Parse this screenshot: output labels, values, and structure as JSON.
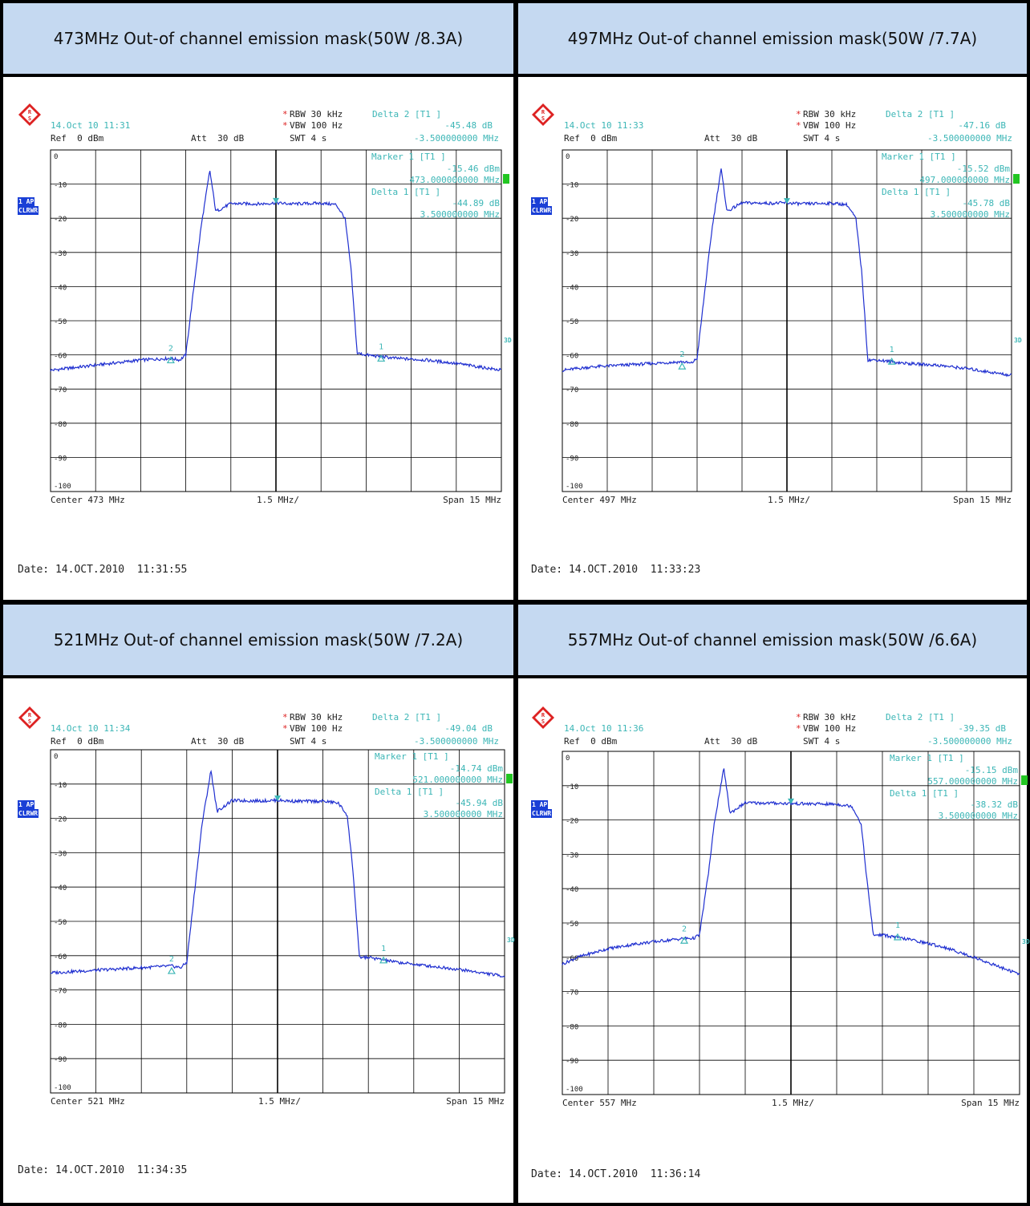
{
  "panels": [
    {
      "title": "473MHz Out-of channel emission mask(50W /8.3A)",
      "datetime_top": "14.Oct 10 11:31",
      "ref": "Ref  0 dBm",
      "att": "Att  30 dB",
      "rbw": "RBW 30 kHz",
      "vbw": "VBW 100 Hz",
      "swt": "SWT 4 s",
      "delta2_label": "Delta 2 [T1 ]",
      "delta2_value": "-45.48 dB",
      "delta2_freq": "-3.500000000 MHz",
      "marker1_label": "Marker 1 [T1 ]",
      "marker1_value": "-15.46 dBm",
      "marker1_freq": "473.000000000 MHz",
      "delta1_label": "Delta 1 [T1 ]",
      "delta1_value": "-44.89 dB",
      "delta1_freq": "3.500000000 MHz",
      "badge_ap": "1 AP",
      "badge_mode": "CLRWR",
      "center": "Center 473 MHz",
      "div": "1.5 MHz/",
      "span": "Span 15 MHz",
      "date_footer": "Date: 14.OCT.2010  11:31:55"
    },
    {
      "title": "497MHz Out-of channel emission mask(50W /7.7A)",
      "datetime_top": "14.Oct 10 11:33",
      "ref": "Ref  0 dBm",
      "att": "Att  30 dB",
      "rbw": "RBW 30 kHz",
      "vbw": "VBW 100 Hz",
      "swt": "SWT 4 s",
      "delta2_label": "Delta 2 [T1 ]",
      "delta2_value": "-47.16 dB",
      "delta2_freq": "-3.500000000 MHz",
      "marker1_label": "Marker 1 [T1 ]",
      "marker1_value": "-15.52 dBm",
      "marker1_freq": "497.000000000 MHz",
      "delta1_label": "Delta 1 [T1 ]",
      "delta1_value": "-45.78 dB",
      "delta1_freq": "3.500000000 MHz",
      "badge_ap": "1 AP",
      "badge_mode": "CLRWR",
      "center": "Center 497 MHz",
      "div": "1.5 MHz/",
      "span": "Span 15 MHz",
      "date_footer": "Date: 14.OCT.2010  11:33:23"
    },
    {
      "title": "521MHz Out-of channel emission mask(50W /7.2A)",
      "datetime_top": "14.Oct 10 11:34",
      "ref": "Ref  0 dBm",
      "att": "Att  30 dB",
      "rbw": "RBW 30 kHz",
      "vbw": "VBW 100 Hz",
      "swt": "SWT 4 s",
      "delta2_label": "Delta 2 [T1 ]",
      "delta2_value": "-49.04 dB",
      "delta2_freq": "-3.500000000 MHz",
      "marker1_label": "Marker 1 [T1 ]",
      "marker1_value": "-14.74 dBm",
      "marker1_freq": "521.000000000 MHz",
      "delta1_label": "Delta 1 [T1 ]",
      "delta1_value": "-45.94 dB",
      "delta1_freq": "3.500000000 MHz",
      "badge_ap": "1 AP",
      "badge_mode": "CLRWR",
      "center": "Center 521 MHz",
      "div": "1.5 MHz/",
      "span": "Span 15 MHz",
      "date_footer": "Date: 14.OCT.2010  11:34:35"
    },
    {
      "title": "557MHz Out-of channel emission mask(50W /6.6A)",
      "datetime_top": "14.Oct 10 11:36",
      "ref": "Ref  0 dBm",
      "att": "Att  30 dB",
      "rbw": "RBW 30 kHz",
      "vbw": "VBW 100 Hz",
      "swt": "SWT 4 s",
      "delta2_label": "Delta 2 [T1 ]",
      "delta2_value": "-39.35 dB",
      "delta2_freq": "-3.500000000 MHz",
      "marker1_label": "Marker 1 [T1 ]",
      "marker1_value": "-15.15 dBm",
      "marker1_freq": "557.000000000 MHz",
      "delta1_label": "Delta 1 [T1 ]",
      "delta1_value": "-38.32 dB",
      "delta1_freq": "3.500000000 MHz",
      "badge_ap": "1 AP",
      "badge_mode": "CLRWR",
      "center": "Center 557 MHz",
      "div": "1.5 MHz/",
      "span": "Span 15 MHz",
      "date_footer": "Date: 14.OCT.2010  11:36:14"
    }
  ],
  "colors": {
    "header_bg": "#c5d9f1",
    "trace": "#1f2fd0",
    "annot": "#3cb6b6",
    "badge": "#1a3fd6"
  },
  "chart_data": [
    {
      "type": "line",
      "title": "473MHz Out-of channel emission mask(50W /8.3A)",
      "xlabel": "MHz",
      "ylabel": "dBm",
      "xlim": [
        465.5,
        480.5
      ],
      "ylim": [
        -100,
        0
      ],
      "yticks": [
        0,
        -10,
        -20,
        -30,
        -40,
        -50,
        -60,
        -70,
        -80,
        -90,
        -100
      ],
      "grid": true,
      "series": [
        {
          "x": [
            465.5,
            466.5,
            467.5,
            468.5,
            469.5,
            469.8,
            470.0,
            470.3,
            470.5,
            470.8,
            471.0,
            471.5,
            472.5,
            473.0,
            473.5,
            474.5,
            475.0,
            475.3,
            475.5,
            475.7,
            476.0,
            477.0,
            478.0,
            479.0,
            480.5
          ],
          "y": [
            -64.5,
            -63.5,
            -62.5,
            -61.5,
            -61,
            -61.5,
            -60,
            -38,
            -23,
            -6,
            -18,
            -15.7,
            -15.8,
            -15.5,
            -15.8,
            -15.6,
            -16,
            -20,
            -35,
            -59.5,
            -60,
            -61,
            -61.5,
            -62.5,
            -64.5
          ]
        }
      ],
      "markers": [
        {
          "name": "1",
          "x": 476.5,
          "y": -60.4
        },
        {
          "name": "2",
          "x": 469.5,
          "y": -60.9
        },
        {
          "name": "M1",
          "x": 473.0,
          "y": -15.46
        }
      ]
    },
    {
      "type": "line",
      "title": "497MHz Out-of channel emission mask(50W /7.7A)",
      "xlabel": "MHz",
      "ylabel": "dBm",
      "xlim": [
        489.5,
        504.5
      ],
      "ylim": [
        -100,
        0
      ],
      "yticks": [
        0,
        -10,
        -20,
        -30,
        -40,
        -50,
        -60,
        -70,
        -80,
        -90,
        -100
      ],
      "grid": true,
      "series": [
        {
          "x": [
            489.5,
            490.5,
            491.5,
            492.5,
            493.5,
            493.8,
            494.0,
            494.3,
            494.5,
            494.8,
            495.0,
            495.5,
            496.5,
            497.0,
            497.5,
            498.5,
            499.0,
            499.3,
            499.5,
            499.7,
            500.0,
            501.0,
            502.0,
            503.0,
            504.5
          ],
          "y": [
            -64.5,
            -63.5,
            -63,
            -62.5,
            -62,
            -62.5,
            -61,
            -38,
            -23,
            -5.5,
            -18,
            -15.5,
            -15.6,
            -15.5,
            -15.8,
            -15.6,
            -16,
            -20,
            -36,
            -61.5,
            -61.5,
            -62.5,
            -63,
            -64,
            -66
          ]
        }
      ],
      "markers": [
        {
          "name": "1",
          "x": 500.5,
          "y": -61.3
        },
        {
          "name": "2",
          "x": 493.5,
          "y": -62.7
        },
        {
          "name": "M1",
          "x": 497.0,
          "y": -15.52
        }
      ]
    },
    {
      "type": "line",
      "title": "521MHz Out-of channel emission mask(50W /7.2A)",
      "xlabel": "MHz",
      "ylabel": "dBm",
      "xlim": [
        513.5,
        528.5
      ],
      "ylim": [
        -100,
        0
      ],
      "yticks": [
        0,
        -10,
        -20,
        -30,
        -40,
        -50,
        -60,
        -70,
        -80,
        -90,
        -100
      ],
      "grid": true,
      "series": [
        {
          "x": [
            513.5,
            514.5,
            515.5,
            516.5,
            517.5,
            517.8,
            518.0,
            518.3,
            518.5,
            518.8,
            519.0,
            519.5,
            520.5,
            521.0,
            521.5,
            522.5,
            523.0,
            523.3,
            523.5,
            523.7,
            524.0,
            525.0,
            526.0,
            527.0,
            528.5
          ],
          "y": [
            -65,
            -64.5,
            -64,
            -63.5,
            -63,
            -63.5,
            -62,
            -38,
            -22,
            -6,
            -18,
            -14.8,
            -14.9,
            -14.7,
            -15,
            -15,
            -15.5,
            -19,
            -36,
            -60.5,
            -60.5,
            -62,
            -63,
            -64,
            -66
          ]
        }
      ],
      "markers": [
        {
          "name": "1",
          "x": 524.5,
          "y": -60.7
        },
        {
          "name": "2",
          "x": 517.5,
          "y": -63.8
        },
        {
          "name": "M1",
          "x": 521.0,
          "y": -14.74
        }
      ]
    },
    {
      "type": "line",
      "title": "557MHz Out-of channel emission mask(50W /6.6A)",
      "xlabel": "MHz",
      "ylabel": "dBm",
      "xlim": [
        549.5,
        564.5
      ],
      "ylim": [
        -100,
        0
      ],
      "yticks": [
        0,
        -10,
        -20,
        -30,
        -40,
        -50,
        -60,
        -70,
        -80,
        -90,
        -100
      ],
      "grid": true,
      "series": [
        {
          "x": [
            549.5,
            550.0,
            551.0,
            552.0,
            553.0,
            553.5,
            553.8,
            554.0,
            554.3,
            554.5,
            554.8,
            555.0,
            555.5,
            556.5,
            557.0,
            557.5,
            558.5,
            559.0,
            559.3,
            559.5,
            559.7,
            560.0,
            561.0,
            562.0,
            563.0,
            564.5
          ],
          "y": [
            -62,
            -60,
            -57.5,
            -56,
            -55,
            -54.5,
            -54.5,
            -53.5,
            -35,
            -20,
            -5,
            -18,
            -15,
            -15.1,
            -15.2,
            -15.3,
            -15.4,
            -16,
            -21,
            -38,
            -53.5,
            -53.5,
            -55,
            -57,
            -60,
            -65
          ]
        }
      ],
      "markers": [
        {
          "name": "1",
          "x": 560.5,
          "y": -53.5
        },
        {
          "name": "2",
          "x": 553.5,
          "y": -54.5
        },
        {
          "name": "M1",
          "x": 557.0,
          "y": -15.15
        }
      ]
    }
  ]
}
